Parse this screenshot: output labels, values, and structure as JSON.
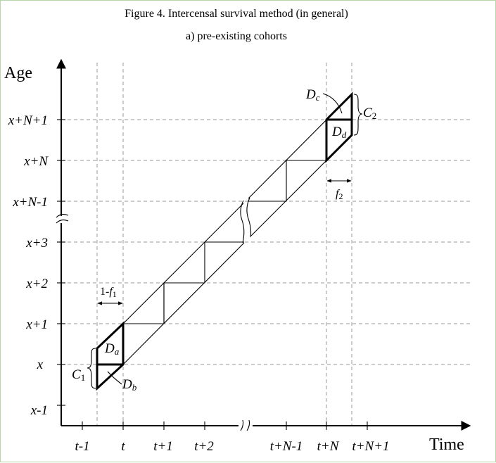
{
  "title": {
    "line1": "Figure 4.  Intercensal survival method (in general)",
    "line2": "a) pre-existing cohorts"
  },
  "axes": {
    "y_title": "Age",
    "x_title": "Time",
    "y_ticks": [
      "x-1",
      "x",
      "x+1",
      "x+2",
      "x+3",
      "x+N-1",
      "x+N",
      "x+N+1"
    ],
    "x_ticks": [
      "t-1",
      "t",
      "t+1",
      "t+2",
      "t+N-1",
      "t+N",
      "t+N+1"
    ]
  },
  "labels": {
    "Da": "D",
    "Da_sub": "a",
    "Db": "D",
    "Db_sub": "b",
    "Dc": "D",
    "Dc_sub": "c",
    "Dd": "D",
    "Dd_sub": "d",
    "C1": "C",
    "C1_sub": "1",
    "C2": "C",
    "C2_sub": "2",
    "f1_prefix": "1-",
    "f1": "f",
    "f1_sub": "1",
    "f2": "f",
    "f2_sub": "2"
  }
}
